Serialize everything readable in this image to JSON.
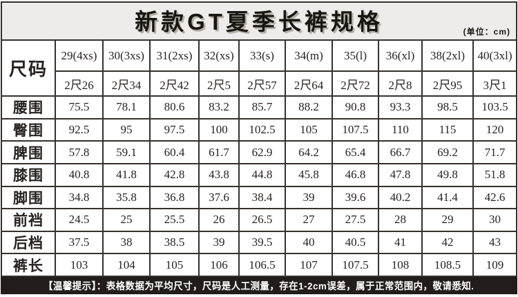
{
  "title": "新款GT夏季长裤规格",
  "unit_label": "(单位：cm)",
  "colors": {
    "border": "#35302c",
    "title_background": "#edecea",
    "cell_background": "#ffffff",
    "notice_background": "#221d1a",
    "notice_text": "#ffffff"
  },
  "chart_data": {
    "type": "table",
    "title": "新款GT夏季长裤规格",
    "unit": "(单位：cm)",
    "corner_label": "尺码",
    "columns_size": [
      "29(4xs)",
      "30(3xs)",
      "31(2xs)",
      "32(xs)",
      "33(s)",
      "34(m)",
      "35(l)",
      "36(xl)",
      "38(2xl)",
      "40(3xl)"
    ],
    "columns_chi": [
      "2尺26",
      "2尺34",
      "2尺42",
      "2尺5",
      "2尺57",
      "2尺64",
      "2尺72",
      "2尺8",
      "2尺95",
      "3尺1"
    ],
    "rows": [
      {
        "label": "腰围",
        "values": [
          75.5,
          78.1,
          80.6,
          83.2,
          85.7,
          88.2,
          90.8,
          93.3,
          98.5,
          103.5
        ]
      },
      {
        "label": "臀围",
        "values": [
          92.5,
          95,
          97.5,
          100,
          102.5,
          105,
          107.5,
          110,
          115,
          120
        ]
      },
      {
        "label": "脾围",
        "values": [
          57.8,
          59.1,
          60.4,
          61.7,
          62.9,
          64.2,
          65.4,
          66.7,
          69.2,
          71.7
        ]
      },
      {
        "label": "膝围",
        "values": [
          40.8,
          41.8,
          42.8,
          43.8,
          44.8,
          45.8,
          46.8,
          47.8,
          49.8,
          51.8
        ]
      },
      {
        "label": "脚围",
        "values": [
          34.8,
          35.8,
          36.8,
          37.6,
          38.4,
          39,
          39.6,
          40.2,
          41.4,
          42.6
        ]
      },
      {
        "label": "前裆",
        "values": [
          24.5,
          25,
          25.5,
          26,
          26.5,
          27,
          27.5,
          28,
          29,
          30
        ]
      },
      {
        "label": "后档",
        "values": [
          37.5,
          38,
          38.5,
          39,
          39.5,
          40,
          40.5,
          41,
          42,
          43
        ]
      },
      {
        "label": "裤长",
        "values": [
          103,
          104,
          105,
          106,
          106.5,
          107,
          107.5,
          108,
          108.5,
          109
        ]
      }
    ]
  },
  "footer_note": "【温馨提示】：表格数据为平均尺寸，尺码是人工测量，存在1-2cm误差，属于正常范围内，敬请悉知."
}
